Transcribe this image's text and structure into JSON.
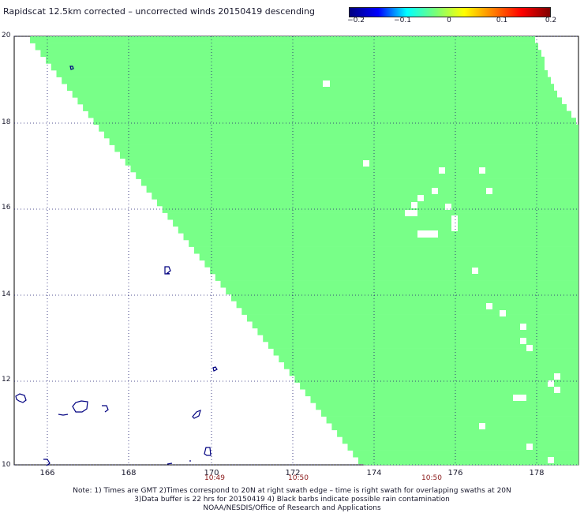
{
  "title": "Rapidscat 12.5km corrected – uncorrected winds 20150419 descending",
  "colorbar": {
    "ticks": [
      "−0.2",
      "−0.1",
      "0",
      "0.1",
      "0.2"
    ],
    "colors": [
      "#000080",
      "#0000ff",
      "#00ffff",
      "#78ff78",
      "#ffff00",
      "#ff8000",
      "#ff0000",
      "#800000"
    ]
  },
  "swath_color": "#78ff88",
  "coast_color": "#000080",
  "y_axis": {
    "labels": [
      "20",
      "18",
      "16",
      "14",
      "12",
      "10"
    ]
  },
  "x_axis": {
    "labels": [
      "166",
      "168",
      "170",
      "172",
      "174",
      "176",
      "178"
    ]
  },
  "time_labels": [
    "10:49",
    "10:50",
    "10:50"
  ],
  "notes": {
    "line1": "Note: 1) Times are GMT 2)Times correspond to 20N at right swath edge – time is right swath for overlapping swaths at 20N",
    "line2": "3)Data buffer is 22 hrs for 20150419 4) Black barbs indicate possible rain contamination",
    "line3": "NOAA/NESDIS/Office of Research and Applications"
  }
}
